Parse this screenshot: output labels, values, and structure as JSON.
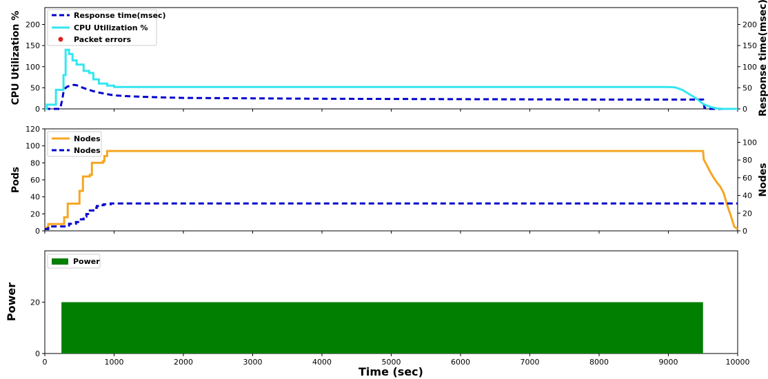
{
  "chart_data": [
    {
      "type": "line",
      "ylabel": "CPU Utilization %",
      "y2label": "Response time(msec)",
      "ylim": [
        0,
        240
      ],
      "y2lim": [
        0,
        240
      ],
      "xlim": [
        0,
        10000
      ],
      "yticks": [
        "0",
        "50",
        "100",
        "150",
        "200"
      ],
      "y2ticks": [
        "0",
        "50",
        "100",
        "150",
        "200"
      ],
      "legend_position": "top-left",
      "series": [
        {
          "name": "Response time(msec)",
          "color": "#0000cc",
          "style": "dashed",
          "axis": "right",
          "x": [
            0,
            220,
            250,
            270,
            300,
            330,
            370,
            420,
            460,
            500,
            550,
            600,
            700,
            800,
            900,
            1000,
            1200,
            1500,
            2000,
            3000,
            4000,
            5000,
            6000,
            7000,
            8000,
            9000,
            9500,
            9520,
            9600,
            10000
          ],
          "y": [
            0,
            0,
            20,
            40,
            50,
            53,
            55,
            57,
            56,
            53,
            50,
            47,
            42,
            38,
            35,
            32,
            30,
            28,
            26,
            25,
            24,
            23.5,
            23,
            22.5,
            22,
            22,
            22,
            3,
            0,
            0
          ]
        },
        {
          "name": "CPU Utilization %",
          "color": "#33e6f0",
          "style": "solid",
          "axis": "left",
          "x": [
            0,
            30,
            30,
            160,
            160,
            270,
            270,
            300,
            300,
            350,
            350,
            400,
            400,
            460,
            460,
            560,
            560,
            640,
            640,
            700,
            700,
            780,
            780,
            900,
            900,
            1000,
            1000,
            3000,
            5000,
            7000,
            8000,
            9000,
            9100,
            9200,
            9300,
            9400,
            9500,
            9600,
            9700,
            9800,
            10000
          ],
          "y": [
            0,
            0,
            10,
            10,
            45,
            45,
            80,
            80,
            140,
            140,
            130,
            130,
            115,
            115,
            105,
            105,
            90,
            90,
            85,
            85,
            70,
            70,
            60,
            60,
            55,
            55,
            52,
            52,
            52,
            52,
            52,
            52,
            51,
            45,
            35,
            25,
            12,
            5,
            1,
            0,
            0
          ]
        },
        {
          "name": "Packet errors",
          "color": "#dd2222",
          "style": "marker",
          "axis": "left",
          "x": [],
          "y": []
        }
      ]
    },
    {
      "type": "line",
      "ylabel": "Pods",
      "y2label": "Nodes",
      "ylim": [
        0,
        120
      ],
      "y2lim": [
        0,
        115.2
      ],
      "xlim": [
        0,
        10000
      ],
      "yticks": [
        "0",
        "20",
        "40",
        "60",
        "80",
        "100",
        "120"
      ],
      "y2ticks": [
        "0",
        "20",
        "40",
        "60",
        "80",
        "100"
      ],
      "legend_position": "top-left",
      "series": [
        {
          "name": "Nodes",
          "color": "#f5a623",
          "style": "solid",
          "axis": "left",
          "x": [
            0,
            50,
            50,
            280,
            280,
            330,
            330,
            500,
            500,
            550,
            550,
            650,
            650,
            680,
            680,
            840,
            840,
            860,
            860,
            900,
            900,
            9500,
            9510,
            9550,
            9600,
            9650,
            9700,
            9750,
            9800,
            9850,
            9900,
            9950,
            10000
          ],
          "y": [
            4,
            4,
            8,
            8,
            16,
            16,
            32,
            32,
            47,
            47,
            64,
            64,
            66,
            66,
            80,
            80,
            82,
            82,
            88,
            88,
            94,
            94,
            84,
            78,
            70,
            63,
            57,
            52,
            44,
            30,
            18,
            5,
            2
          ]
        },
        {
          "name": "Nodes",
          "color": "#0000cc",
          "style": "dashed",
          "axis": "right",
          "x": [
            0,
            50,
            50,
            350,
            350,
            450,
            450,
            520,
            520,
            560,
            560,
            600,
            600,
            650,
            650,
            700,
            700,
            750,
            750,
            800,
            800,
            850,
            850,
            950,
            950,
            10000
          ],
          "y": [
            2,
            2,
            5,
            5,
            8,
            8,
            10,
            10,
            13,
            13,
            16,
            16,
            19,
            19,
            23,
            23,
            26,
            26,
            28,
            28,
            29,
            29,
            30,
            30,
            31,
            31
          ]
        }
      ]
    },
    {
      "type": "area",
      "ylabel": "Power",
      "xlabel": "Time (sec)",
      "ylim": [
        0,
        40
      ],
      "xlim": [
        0,
        10000
      ],
      "yticks": [
        "0",
        "20"
      ],
      "xticks": [
        "0",
        "1000",
        "2000",
        "3000",
        "4000",
        "5000",
        "6000",
        "7000",
        "8000",
        "9000",
        "10000"
      ],
      "legend_position": "top-left",
      "series": [
        {
          "name": "Power",
          "color": "#007f00",
          "x_start": 240,
          "x_end": 9500,
          "value": 20
        }
      ]
    }
  ]
}
